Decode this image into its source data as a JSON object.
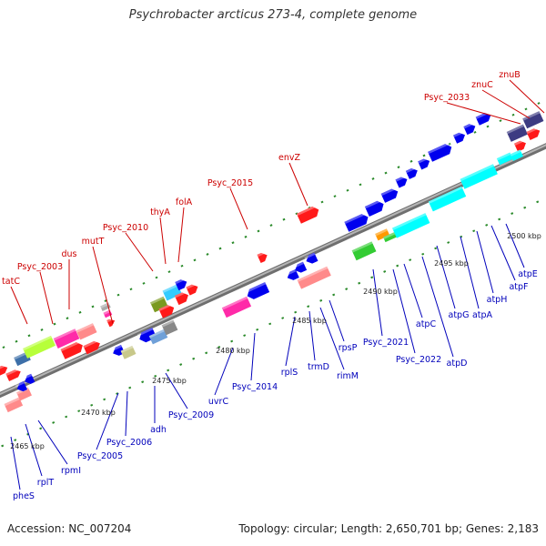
{
  "title": "Psychrobacter arcticus 273-4, complete genome",
  "footer": {
    "accession": "Accession: NC_007204",
    "summary": "Topology: circular; Length: 2,650,701 bp; Genes: 2,183"
  },
  "colors": {
    "forward_label": "#cc0000",
    "reverse_label": "#0000bb",
    "backbone": "#888888",
    "tick": "#2a8a2a"
  },
  "ticks": [
    "2465 kbp",
    "2470 kbp",
    "2475 kbp",
    "2480 kbp",
    "2485 kbp",
    "2490 kbp",
    "2495 kbp",
    "2500 kbp"
  ],
  "forward_genes": [
    "tatC",
    "Psyc_2003",
    "dus",
    "mutT",
    "Psyc_2010",
    "thyA",
    "folA",
    "Psyc_2015",
    "envZ",
    "Psyc_2033",
    "znuC",
    "znuB"
  ],
  "reverse_genes": [
    "pheS",
    "rplT",
    "rpmI",
    "Psyc_2005",
    "Psyc_2006",
    "adh",
    "Psyc_2009",
    "uvrC",
    "Psyc_2014",
    "rplS",
    "trmD",
    "rimM",
    "rpsP",
    "Psyc_2021",
    "Psyc_2022",
    "atpC",
    "atpD",
    "atpG",
    "atpA",
    "atpH",
    "atpF",
    "atpE"
  ]
}
